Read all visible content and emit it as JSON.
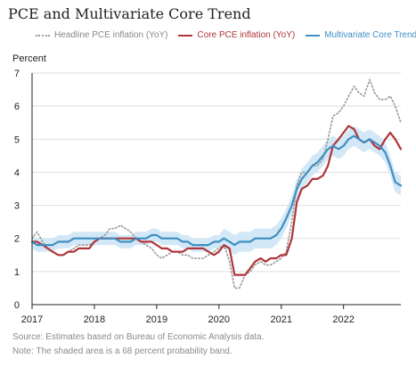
{
  "chart_data": {
    "type": "line",
    "title": "PCE and Multivariate Core Trend",
    "ylabel": "Percent",
    "xlabel": "",
    "xlim": [
      2017.0,
      2022.92
    ],
    "ylim": [
      0,
      7
    ],
    "xticks": [
      2017,
      2018,
      2019,
      2020,
      2021,
      2022
    ],
    "yticks": [
      0,
      1,
      2,
      3,
      4,
      5,
      6,
      7
    ],
    "legend_position": "top",
    "band_label": "68 percent probability band",
    "series": [
      {
        "name": "Headline PCE inflation (YoY)",
        "color": "#999999",
        "style": "dotted",
        "x": [
          2017.0,
          2017.08,
          2017.17,
          2017.25,
          2017.33,
          2017.42,
          2017.5,
          2017.58,
          2017.67,
          2017.75,
          2017.83,
          2017.92,
          2018.0,
          2018.08,
          2018.17,
          2018.25,
          2018.33,
          2018.42,
          2018.5,
          2018.58,
          2018.67,
          2018.75,
          2018.83,
          2018.92,
          2019.0,
          2019.08,
          2019.17,
          2019.25,
          2019.33,
          2019.42,
          2019.5,
          2019.58,
          2019.67,
          2019.75,
          2019.83,
          2019.92,
          2020.0,
          2020.08,
          2020.17,
          2020.25,
          2020.33,
          2020.42,
          2020.5,
          2020.58,
          2020.67,
          2020.75,
          2020.83,
          2020.92,
          2021.0,
          2021.08,
          2021.17,
          2021.25,
          2021.33,
          2021.42,
          2021.5,
          2021.58,
          2021.67,
          2021.75,
          2021.83,
          2021.92,
          2022.0,
          2022.08,
          2022.17,
          2022.25,
          2022.33,
          2022.42,
          2022.5,
          2022.58,
          2022.67,
          2022.75,
          2022.83,
          2022.92
        ],
        "values": [
          2.0,
          2.2,
          1.9,
          1.7,
          1.6,
          1.5,
          1.5,
          1.6,
          1.7,
          1.8,
          1.8,
          1.8,
          1.9,
          2.0,
          2.1,
          2.3,
          2.3,
          2.4,
          2.3,
          2.2,
          2.0,
          1.9,
          1.8,
          1.7,
          1.5,
          1.4,
          1.5,
          1.6,
          1.6,
          1.5,
          1.5,
          1.4,
          1.4,
          1.4,
          1.5,
          1.6,
          1.7,
          1.8,
          1.3,
          0.5,
          0.5,
          0.9,
          1.0,
          1.2,
          1.3,
          1.2,
          1.2,
          1.3,
          1.4,
          1.6,
          2.5,
          3.6,
          4.0,
          4.0,
          4.2,
          4.2,
          4.4,
          5.0,
          5.7,
          5.8,
          6.0,
          6.3,
          6.6,
          6.4,
          6.3,
          6.8,
          6.4,
          6.2,
          6.2,
          6.3,
          6.0,
          5.5
        ]
      },
      {
        "name": "Core PCE inflation (YoY)",
        "color": "#b0353a",
        "style": "solid",
        "x": [
          2017.0,
          2017.08,
          2017.17,
          2017.25,
          2017.33,
          2017.42,
          2017.5,
          2017.58,
          2017.67,
          2017.75,
          2017.83,
          2017.92,
          2018.0,
          2018.08,
          2018.17,
          2018.25,
          2018.33,
          2018.42,
          2018.5,
          2018.58,
          2018.67,
          2018.75,
          2018.83,
          2018.92,
          2019.0,
          2019.08,
          2019.17,
          2019.25,
          2019.33,
          2019.42,
          2019.5,
          2019.58,
          2019.67,
          2019.75,
          2019.83,
          2019.92,
          2020.0,
          2020.08,
          2020.17,
          2020.25,
          2020.33,
          2020.42,
          2020.5,
          2020.58,
          2020.67,
          2020.75,
          2020.83,
          2020.92,
          2021.0,
          2021.08,
          2021.17,
          2021.25,
          2021.33,
          2021.42,
          2021.5,
          2021.58,
          2021.67,
          2021.75,
          2021.83,
          2021.92,
          2022.0,
          2022.08,
          2022.17,
          2022.25,
          2022.33,
          2022.42,
          2022.5,
          2022.58,
          2022.67,
          2022.75,
          2022.83,
          2022.92
        ],
        "values": [
          1.9,
          1.9,
          1.8,
          1.7,
          1.6,
          1.5,
          1.5,
          1.6,
          1.6,
          1.7,
          1.7,
          1.7,
          1.9,
          2.0,
          2.0,
          2.0,
          2.0,
          2.0,
          2.0,
          2.0,
          2.0,
          1.9,
          1.9,
          1.9,
          1.8,
          1.7,
          1.7,
          1.6,
          1.6,
          1.6,
          1.7,
          1.7,
          1.7,
          1.7,
          1.6,
          1.5,
          1.6,
          1.8,
          1.7,
          0.9,
          0.9,
          0.9,
          1.1,
          1.3,
          1.4,
          1.3,
          1.4,
          1.4,
          1.5,
          1.5,
          2.0,
          3.1,
          3.5,
          3.6,
          3.8,
          3.8,
          3.9,
          4.2,
          4.8,
          5.0,
          5.2,
          5.4,
          5.3,
          5.0,
          4.9,
          5.0,
          4.8,
          4.7,
          5.0,
          5.2,
          5.0,
          4.7
        ]
      },
      {
        "name": "Multivariate Core Trend",
        "color": "#3e8fc2",
        "style": "solid",
        "x": [
          2017.0,
          2017.08,
          2017.17,
          2017.25,
          2017.33,
          2017.42,
          2017.5,
          2017.58,
          2017.67,
          2017.75,
          2017.83,
          2017.92,
          2018.0,
          2018.08,
          2018.17,
          2018.25,
          2018.33,
          2018.42,
          2018.5,
          2018.58,
          2018.67,
          2018.75,
          2018.83,
          2018.92,
          2019.0,
          2019.08,
          2019.17,
          2019.25,
          2019.33,
          2019.42,
          2019.5,
          2019.58,
          2019.67,
          2019.75,
          2019.83,
          2019.92,
          2020.0,
          2020.08,
          2020.17,
          2020.25,
          2020.33,
          2020.42,
          2020.5,
          2020.58,
          2020.67,
          2020.75,
          2020.83,
          2020.92,
          2021.0,
          2021.08,
          2021.17,
          2021.25,
          2021.33,
          2021.42,
          2021.5,
          2021.58,
          2021.67,
          2021.75,
          2021.83,
          2021.92,
          2022.0,
          2022.08,
          2022.17,
          2022.25,
          2022.33,
          2022.42,
          2022.5,
          2022.58,
          2022.67,
          2022.75,
          2022.83,
          2022.92
        ],
        "values": [
          1.9,
          1.8,
          1.8,
          1.8,
          1.8,
          1.9,
          1.9,
          1.9,
          2.0,
          2.0,
          2.0,
          2.0,
          2.0,
          2.0,
          2.0,
          2.0,
          2.0,
          1.9,
          1.9,
          1.9,
          2.0,
          2.0,
          2.0,
          2.1,
          2.1,
          2.0,
          2.0,
          2.0,
          2.0,
          1.9,
          1.9,
          1.8,
          1.8,
          1.8,
          1.8,
          1.9,
          1.9,
          2.0,
          1.9,
          1.8,
          1.9,
          1.9,
          1.9,
          2.0,
          2.0,
          2.0,
          2.0,
          2.1,
          2.3,
          2.6,
          3.0,
          3.5,
          3.8,
          4.0,
          4.2,
          4.3,
          4.5,
          4.7,
          4.8,
          4.7,
          4.8,
          5.0,
          5.1,
          5.0,
          4.9,
          5.0,
          4.9,
          4.8,
          4.6,
          4.2,
          3.7,
          3.6
        ],
        "band_lower": [
          1.7,
          1.6,
          1.6,
          1.6,
          1.6,
          1.7,
          1.7,
          1.7,
          1.8,
          1.8,
          1.8,
          1.8,
          1.8,
          1.8,
          1.8,
          1.8,
          1.8,
          1.7,
          1.7,
          1.7,
          1.8,
          1.8,
          1.8,
          1.9,
          1.9,
          1.8,
          1.8,
          1.8,
          1.8,
          1.7,
          1.7,
          1.6,
          1.6,
          1.6,
          1.6,
          1.7,
          1.7,
          1.7,
          1.6,
          1.5,
          1.6,
          1.6,
          1.6,
          1.7,
          1.7,
          1.7,
          1.7,
          1.8,
          2.0,
          2.3,
          2.7,
          3.2,
          3.5,
          3.7,
          3.9,
          4.0,
          4.2,
          4.4,
          4.5,
          4.4,
          4.5,
          4.7,
          4.8,
          4.7,
          4.6,
          4.7,
          4.6,
          4.5,
          4.3,
          3.9,
          3.4,
          3.3
        ],
        "band_upper": [
          2.1,
          2.0,
          2.0,
          2.0,
          2.0,
          2.1,
          2.1,
          2.1,
          2.2,
          2.2,
          2.2,
          2.2,
          2.2,
          2.2,
          2.2,
          2.2,
          2.2,
          2.1,
          2.1,
          2.1,
          2.2,
          2.2,
          2.2,
          2.3,
          2.3,
          2.2,
          2.2,
          2.2,
          2.2,
          2.1,
          2.1,
          2.0,
          2.0,
          2.0,
          2.0,
          2.1,
          2.1,
          2.3,
          2.2,
          2.1,
          2.2,
          2.2,
          2.2,
          2.3,
          2.3,
          2.3,
          2.3,
          2.4,
          2.6,
          2.9,
          3.3,
          3.8,
          4.1,
          4.3,
          4.5,
          4.6,
          4.8,
          5.0,
          5.1,
          5.0,
          5.1,
          5.3,
          5.4,
          5.3,
          5.2,
          5.3,
          5.2,
          5.1,
          4.9,
          4.5,
          4.0,
          3.9
        ]
      }
    ]
  },
  "footnotes": {
    "source": "Source: Estimates based on Bureau of Economic Analysis data.",
    "note": "Note: The shaded area is a 68 percent probability band."
  },
  "colors": {
    "band": "#d3e8f6",
    "axis": "#222222",
    "grid": "#dddddd",
    "legend_text_headline": "#888888",
    "legend_text_core": "#b0353a",
    "legend_text_trend": "#3e8fc2"
  }
}
